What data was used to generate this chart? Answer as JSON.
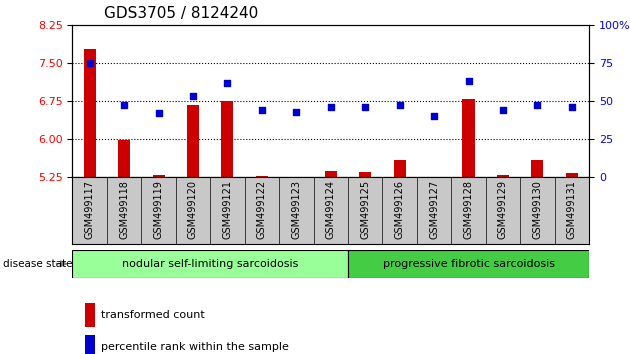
{
  "title": "GDS3705 / 8124240",
  "samples": [
    "GSM499117",
    "GSM499118",
    "GSM499119",
    "GSM499120",
    "GSM499121",
    "GSM499122",
    "GSM499123",
    "GSM499124",
    "GSM499125",
    "GSM499126",
    "GSM499127",
    "GSM499128",
    "GSM499129",
    "GSM499130",
    "GSM499131"
  ],
  "transformed_count": [
    7.78,
    5.98,
    5.28,
    6.67,
    6.75,
    5.26,
    5.24,
    5.36,
    5.35,
    5.58,
    5.24,
    6.78,
    5.28,
    5.58,
    5.32
  ],
  "percentile_rank": [
    75,
    47,
    42,
    53,
    62,
    44,
    43,
    46,
    46,
    47,
    40,
    63,
    44,
    47,
    46
  ],
  "ylim_left": [
    5.25,
    8.25
  ],
  "ylim_right": [
    0,
    100
  ],
  "yticks_left": [
    5.25,
    6.0,
    6.75,
    7.5,
    8.25
  ],
  "yticks_right": [
    0,
    25,
    50,
    75,
    100
  ],
  "bar_color": "#cc0000",
  "scatter_color": "#0000cc",
  "background_color": "#ffffff",
  "plot_bg_color": "#ffffff",
  "group1_label": "nodular self-limiting sarcoidosis",
  "group2_label": "progressive fibrotic sarcoidosis",
  "group1_color": "#99ff99",
  "group2_color": "#44cc44",
  "group1_samples": 8,
  "group2_samples": 7,
  "disease_state_label": "disease state",
  "legend_bar_label": "transformed count",
  "legend_scatter_label": "percentile rank within the sample",
  "title_fontsize": 11,
  "tick_fontsize": 8,
  "xtick_fontsize": 7,
  "label_fontsize": 9,
  "legend_fontsize": 8
}
